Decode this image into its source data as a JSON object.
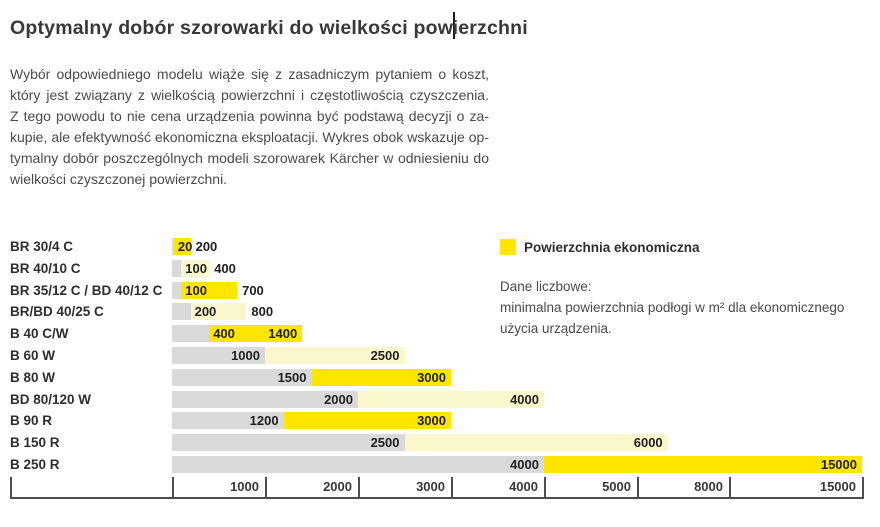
{
  "page": {
    "title": {
      "before_cursor": "Optymalny dobór szorowarki do wielkości pow",
      "after_cursor": "ierzchni"
    },
    "intro_lines": [
      "Wybór odpowiedniego modelu wiąże się z zasadniczym pytaniem o koszt,",
      "który jest związany z wielkością powierzchni i częstotliwością czyszczenia.",
      "Z tego powodu to nie cena urządzenia powinna być podstawą decyzji o za-",
      "kupie, ale efektywność ekonomiczna eksploatacji. Wykres obok wskazuje op-",
      "tymalny dobór poszczególnych modeli szorowarek Kärcher w odniesieniu do",
      "wielkości czyszczonej powierzchni."
    ],
    "legend": {
      "label": "Powierzchnia ekonomiczna"
    },
    "notes": {
      "heading": "Dane liczbowe:",
      "body_lines": [
        "minimalna powierzchnia podłogi w m² dla ekonomicznego",
        "użycia urządzenia."
      ]
    }
  },
  "chart_data": {
    "type": "bar",
    "orientation": "horizontal-range",
    "title": "Optymalny dobór szorowarki do wielkości powierzchni",
    "unit": "m²",
    "legend": {
      "label": "Powierzchnia ekonomiczna",
      "position": "top-right"
    },
    "x_ticks": [
      1000,
      2000,
      3000,
      4000,
      5000,
      8000,
      15000
    ],
    "x_range": [
      0,
      15000
    ],
    "grid": false,
    "rows": [
      {
        "model": "BR 30/4 C",
        "min": 20,
        "max": 200,
        "band": "bright"
      },
      {
        "model": "BR 40/10 C",
        "min": 100,
        "max": 400,
        "band": "pale"
      },
      {
        "model": "BR 35/12 C / BD 40/12 C",
        "min": 100,
        "max": 700,
        "band": "bright"
      },
      {
        "model": "BR/BD 40/25 C",
        "min": 200,
        "max": 800,
        "band": "pale"
      },
      {
        "model": "B 40 C/W",
        "min": 400,
        "max": 1400,
        "band": "bright"
      },
      {
        "model": "B 60 W",
        "min": 1000,
        "max": 2500,
        "band": "pale"
      },
      {
        "model": "B 80 W",
        "min": 1500,
        "max": 3000,
        "band": "bright"
      },
      {
        "model": "BD 80/120 W",
        "min": 2000,
        "max": 4000,
        "band": "pale"
      },
      {
        "model": "B 90 R",
        "min": 1200,
        "max": 3000,
        "band": "bright"
      },
      {
        "model": "B 150 R",
        "min": 2500,
        "max": 6000,
        "band": "pale"
      },
      {
        "model": "B 250 R",
        "min": 4000,
        "max": 15000,
        "band": "bright"
      }
    ],
    "colors": {
      "economic_bright": "#FFE500",
      "economic_pale": "#FBF7CC",
      "below_minimum_gray": "#D9D9D9",
      "axis": "#4d4d4d"
    }
  }
}
